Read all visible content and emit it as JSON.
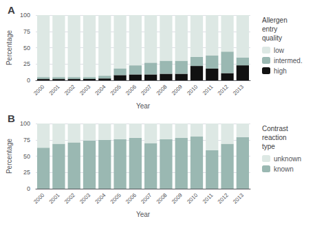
{
  "chart_data": [
    {
      "type": "bar",
      "title": "A",
      "stacked": true,
      "grid": true,
      "legend": "right",
      "legend_title": "Allergen\nentry\nquality",
      "x_label": "Year",
      "y_label": "Percentage",
      "categories": [
        "2000",
        "2001",
        "2002",
        "2003",
        "2004",
        "2005",
        "2006",
        "2007",
        "2008",
        "2009",
        "2010",
        "2011",
        "2012",
        "2013"
      ],
      "ylim": [
        0,
        100
      ],
      "yticks": [
        0,
        25,
        50,
        75,
        100
      ],
      "series": [
        {
          "name": "high",
          "color": "#111111",
          "values": [
            2,
            2,
            2,
            2,
            3,
            8,
            9,
            9,
            10,
            10,
            22,
            18,
            11,
            23
          ]
        },
        {
          "name": "intermed.",
          "color": "#9ab8b2",
          "values": [
            3,
            3,
            3,
            3,
            4,
            10,
            14,
            18,
            20,
            20,
            14,
            20,
            33,
            12
          ]
        },
        {
          "name": "low",
          "color": "#dde8e4",
          "values": [
            95,
            95,
            95,
            95,
            93,
            82,
            77,
            73,
            70,
            70,
            64,
            62,
            56,
            65
          ]
        }
      ]
    },
    {
      "type": "bar",
      "title": "B",
      "stacked": true,
      "grid": true,
      "legend": "right",
      "legend_title": "Contrast\nreaction\ntype",
      "x_label": "Year",
      "y_label": "Percentage",
      "categories": [
        "2000",
        "2001",
        "2002",
        "2003",
        "2004",
        "2005",
        "2006",
        "2007",
        "2008",
        "2009",
        "2010",
        "2011",
        "2012",
        "2013"
      ],
      "ylim": [
        0,
        100
      ],
      "yticks": [
        0,
        25,
        50,
        75,
        100
      ],
      "series": [
        {
          "name": "known",
          "color": "#9ab8b2",
          "values": [
            63,
            69,
            71,
            74,
            75,
            76,
            78,
            70,
            76,
            78,
            80,
            59,
            69,
            79
          ]
        },
        {
          "name": "unknown",
          "color": "#dde8e4",
          "values": [
            37,
            31,
            29,
            26,
            25,
            24,
            22,
            30,
            24,
            22,
            20,
            41,
            31,
            21
          ]
        }
      ]
    }
  ]
}
